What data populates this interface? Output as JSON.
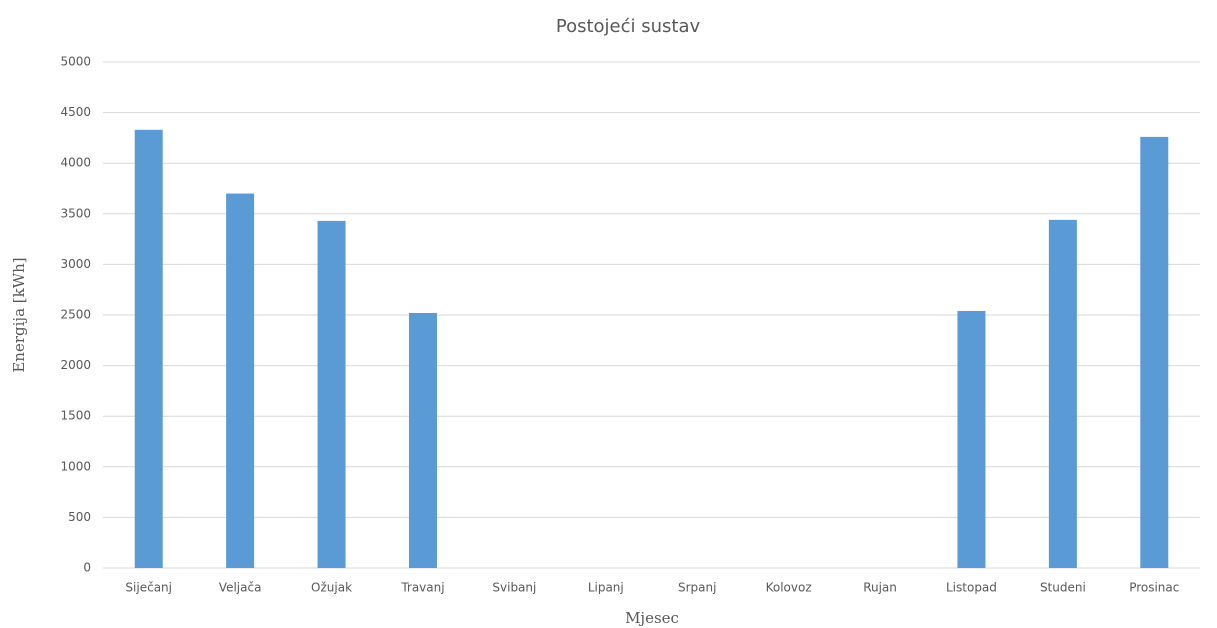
{
  "chart_data": {
    "type": "bar",
    "title": "Postojeći sustav",
    "x_label": "Mjesec",
    "y_label": "Energija [kWh]",
    "categories": [
      "Siječanj",
      "Veljača",
      "Ožujak",
      "Travanj",
      "Svibanj",
      "Lipanj",
      "Srpanj",
      "Kolovoz",
      "Rujan",
      "Listopad",
      "Studeni",
      "Prosinac"
    ],
    "values": [
      4330,
      3700,
      3430,
      2520,
      0,
      0,
      0,
      0,
      0,
      2540,
      3440,
      4260
    ],
    "color": "#5b9bd5",
    "ylim": [
      0,
      5000
    ],
    "yticks": [
      0,
      500,
      1000,
      1500,
      2000,
      2500,
      3000,
      3500,
      4000,
      4500,
      5000
    ],
    "grid": true
  }
}
